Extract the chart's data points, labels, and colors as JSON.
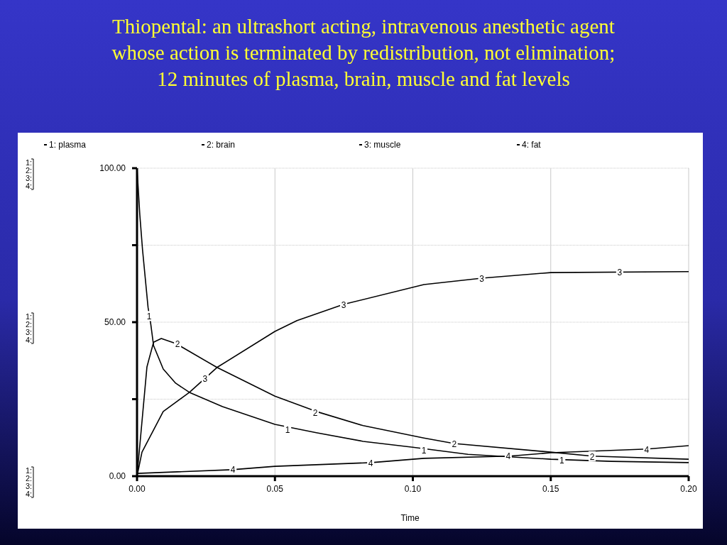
{
  "chart_data": {
    "type": "line",
    "title": "Thiopental: an ultrashort acting, intravenous anesthetic agent\nwhose action is terminated by redistribution, not elimination;\n12 minutes of plasma, brain, muscle and fat levels",
    "xlabel": "Time",
    "xlim": [
      0,
      0.2
    ],
    "xticks": [
      {
        "value": 0,
        "label": "0.00"
      },
      {
        "value": 0.05,
        "label": "0.05"
      },
      {
        "value": 0.1,
        "label": "0.10"
      },
      {
        "value": 0.15,
        "label": "0.15"
      },
      {
        "value": 0.2,
        "label": "0.20"
      }
    ],
    "ylim": [
      0,
      100
    ],
    "yticks": [
      {
        "value": 0,
        "label": "0.00"
      },
      {
        "value": 25,
        "label": null
      },
      {
        "value": 50,
        "label": "50.00"
      },
      {
        "value": 75,
        "label": null
      },
      {
        "value": 100,
        "label": "100.00"
      }
    ],
    "grid": true,
    "legend": "top",
    "series": [
      {
        "name": "1: plasma",
        "color": "#000000",
        "x": [
          0,
          0.001,
          0.002,
          0.004,
          0.005,
          0.006,
          0.0095,
          0.014,
          0.019,
          0.031,
          0.05,
          0.065,
          0.082,
          0.1,
          0.12,
          0.15,
          0.172,
          0.2
        ],
        "values": [
          100,
          85,
          73.5,
          54.8,
          49.3,
          42.4,
          34.8,
          30.2,
          27.2,
          22.6,
          16.8,
          14.1,
          11.3,
          9.4,
          7.1,
          5.5,
          4.8,
          4.4
        ]
      },
      {
        "name": "2: brain",
        "color": "#000000",
        "x": [
          0,
          0.0036,
          0.006,
          0.0088,
          0.014,
          0.029,
          0.05,
          0.065,
          0.082,
          0.104,
          0.115,
          0.15,
          0.165,
          0.2
        ],
        "values": [
          0,
          35.5,
          43.5,
          44.7,
          43.1,
          35.3,
          26,
          21,
          16.4,
          12.4,
          10.6,
          7.8,
          6.5,
          5.5
        ]
      },
      {
        "name": "3: muscle",
        "color": "#000000",
        "x": [
          0,
          0.0018,
          0.0095,
          0.019,
          0.029,
          0.05,
          0.058,
          0.075,
          0.104,
          0.125,
          0.15,
          0.2
        ],
        "values": [
          0,
          7.8,
          21,
          27.2,
          35.3,
          47,
          50.5,
          55.8,
          62.2,
          64.3,
          66.1,
          66.4
        ]
      },
      {
        "name": "4: fat",
        "color": "#000000",
        "x": [
          0,
          0.0345,
          0.05,
          0.085,
          0.104,
          0.135,
          0.15,
          0.185,
          0.2
        ],
        "values": [
          0.9,
          2.1,
          3.2,
          4.4,
          5.8,
          6.5,
          7.6,
          8.8,
          9.9
        ]
      }
    ],
    "annotations": [
      "1: 2: 3: 4:",
      "1: 2: 3: 4:",
      "1: 2: 3: 4:",
      {
        "text": "1",
        "x": 0.0044,
        "y": 52
      },
      {
        "text": "1",
        "x": 0.0546,
        "y": 15.2
      },
      {
        "text": "1",
        "x": 0.104,
        "y": 8.6
      },
      {
        "text": "1",
        "x": 0.154,
        "y": 5.3
      },
      {
        "text": "2",
        "x": 0.0147,
        "y": 43.1
      },
      {
        "text": "2",
        "x": 0.0646,
        "y": 20.7
      },
      {
        "text": "2",
        "x": 0.115,
        "y": 10.6
      },
      {
        "text": "2",
        "x": 0.165,
        "y": 6.5
      },
      {
        "text": "3",
        "x": 0.0247,
        "y": 31.8
      },
      {
        "text": "3",
        "x": 0.0749,
        "y": 55.8
      },
      {
        "text": "3",
        "x": 0.125,
        "y": 64.3
      },
      {
        "text": "3",
        "x": 0.175,
        "y": 66.4
      },
      {
        "text": "4",
        "x": 0.0348,
        "y": 2.3
      },
      {
        "text": "4",
        "x": 0.0847,
        "y": 4.4
      },
      {
        "text": "4",
        "x": 0.1346,
        "y": 6.7
      },
      {
        "text": "4",
        "x": 0.1848,
        "y": 8.8
      }
    ]
  }
}
